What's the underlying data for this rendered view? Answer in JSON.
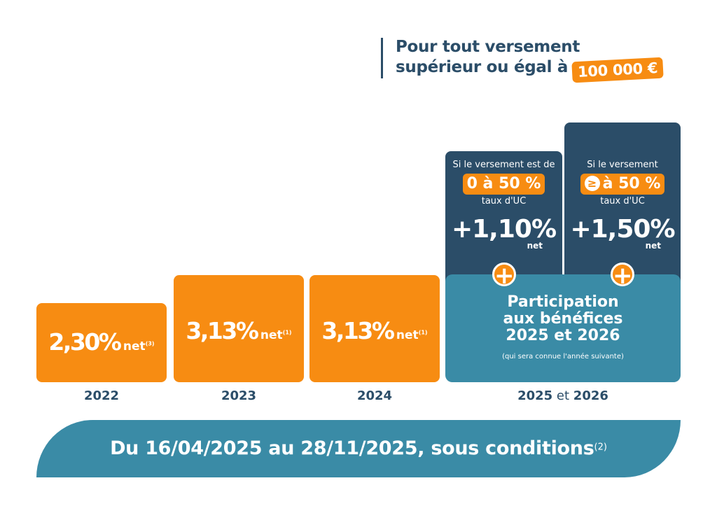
{
  "header": {
    "line1": "Pour tout versement",
    "line2": "supérieur ou égal à",
    "amount": "100 000 €"
  },
  "chart_data": {
    "type": "bar",
    "categories": [
      "2022",
      "2023",
      "2024",
      "2025 et 2026"
    ],
    "values": [
      2.3,
      3.13,
      3.13,
      null
    ],
    "unit": "% net",
    "labels": [
      {
        "num": "2,30",
        "pct": "%",
        "net": "net",
        "note": "(3)"
      },
      {
        "num": "3,13",
        "pct": "%",
        "net": "net",
        "note": "(1)"
      },
      {
        "num": "3,13",
        "pct": "%",
        "net": "net",
        "note": "(1)"
      }
    ],
    "x_labels": [
      {
        "year": "2022"
      },
      {
        "year": "2023"
      },
      {
        "year": "2024"
      },
      {
        "year_a": "2025",
        "sep": "et",
        "year_b": "2026"
      }
    ]
  },
  "participation": {
    "title_line1": "Participation",
    "title_line2": "aux bénéfices",
    "title_line3": "2025 et 2026",
    "note": "(qui sera connue l'année suivante)"
  },
  "bonuses": [
    {
      "condition": "Si le versement est de",
      "range": "0 à 50 %",
      "basis": "taux d'UC",
      "value": "+1,10%",
      "net": "net",
      "plus": "+"
    },
    {
      "condition": "Si le versement",
      "gte_symbol": "≥",
      "range": "à 50 %",
      "basis": "taux d'UC",
      "value": "+1,50%",
      "net": "net",
      "plus": "+"
    }
  ],
  "footer": {
    "text": "Du 16/04/2025 au 28/11/2025, sous conditions",
    "note": "(2)"
  },
  "colors": {
    "orange": "#f78c12",
    "navy": "#2b4d68",
    "teal": "#3a8ba6"
  }
}
